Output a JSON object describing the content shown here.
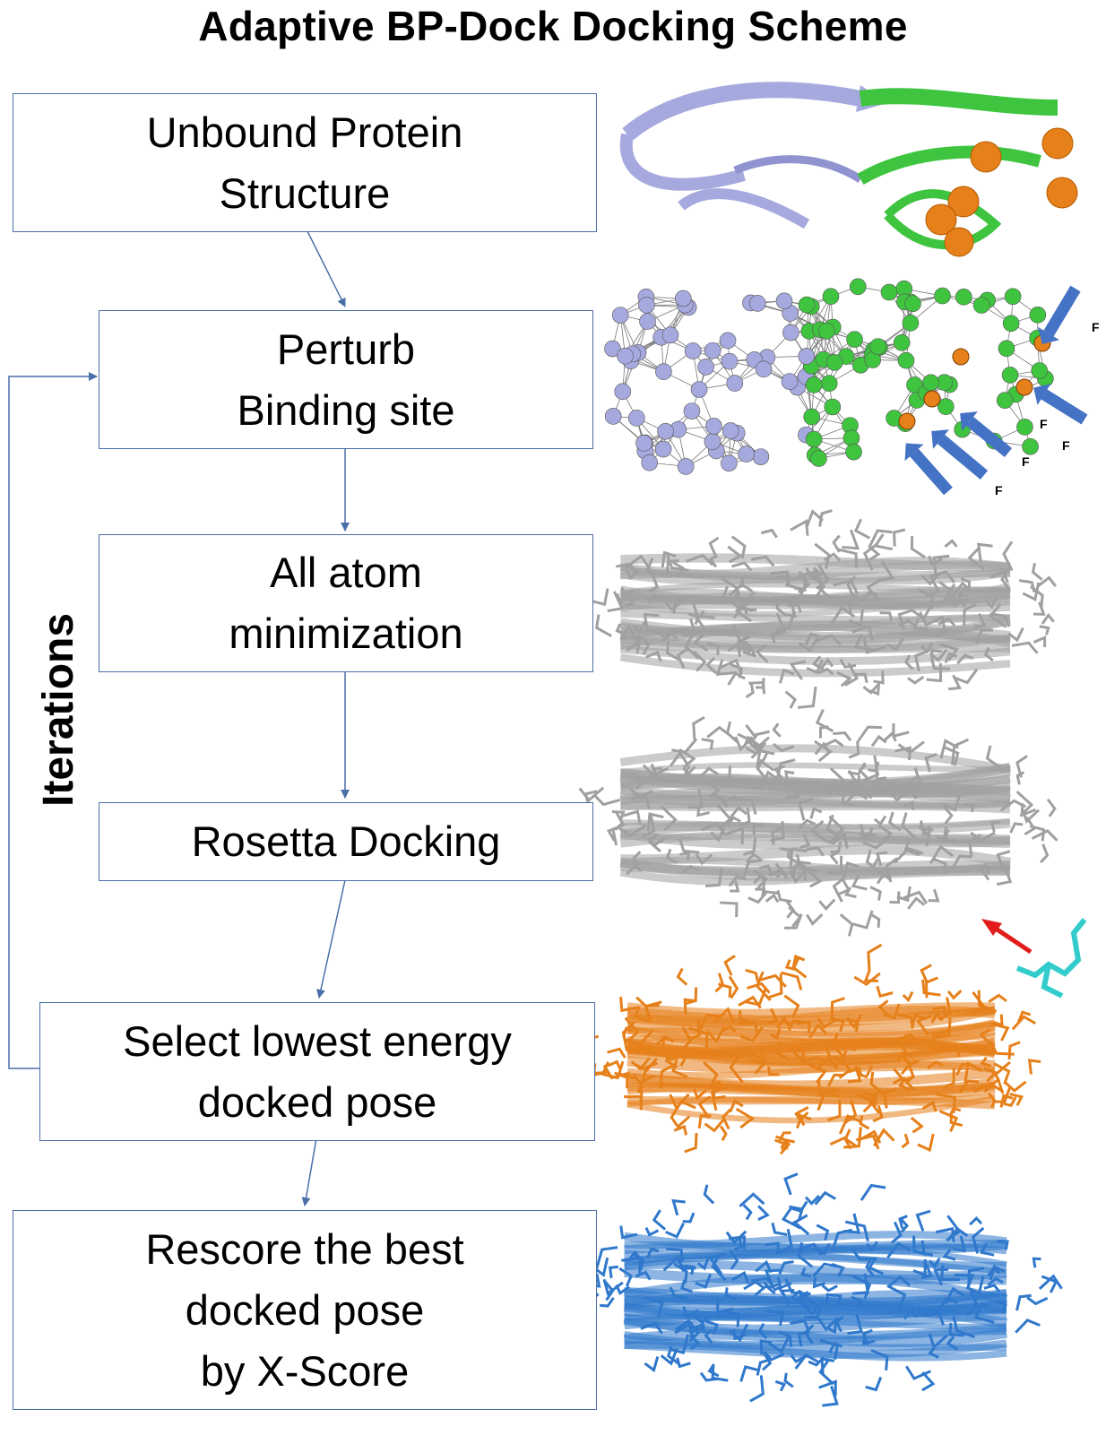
{
  "title": "Adaptive BP-Dock Docking Scheme",
  "steps": [
    "Unbound Protein\nStructure",
    "Perturb\nBinding site",
    "All atom\nminimization",
    "Rosetta Docking",
    "Select lowest energy\ndocked pose",
    "Rescore the best\ndocked pose\nby X-Score"
  ],
  "loop_label": "Iterations",
  "force_label": "F",
  "colors": {
    "box_border": "#4a6fa8",
    "arrow": "#4a6fa8",
    "protein_chain_a": "#a6a9de",
    "protein_chain_b": "#3fc43f",
    "perturbed_residue": "#e6801a",
    "force_arrow": "#4472c4",
    "minimized_structure": "#b0b0b0",
    "docked_pose": "#e6801a",
    "rescored_pose": "#2f78cc",
    "ligand": "#33cccc",
    "ligand_pointer": "#e21b1b"
  },
  "icons": [
    "protein-ribbon",
    "elastic-network",
    "all-atom-structure",
    "docking-structure",
    "docked-pose-structure",
    "rescored-pose-structure"
  ]
}
